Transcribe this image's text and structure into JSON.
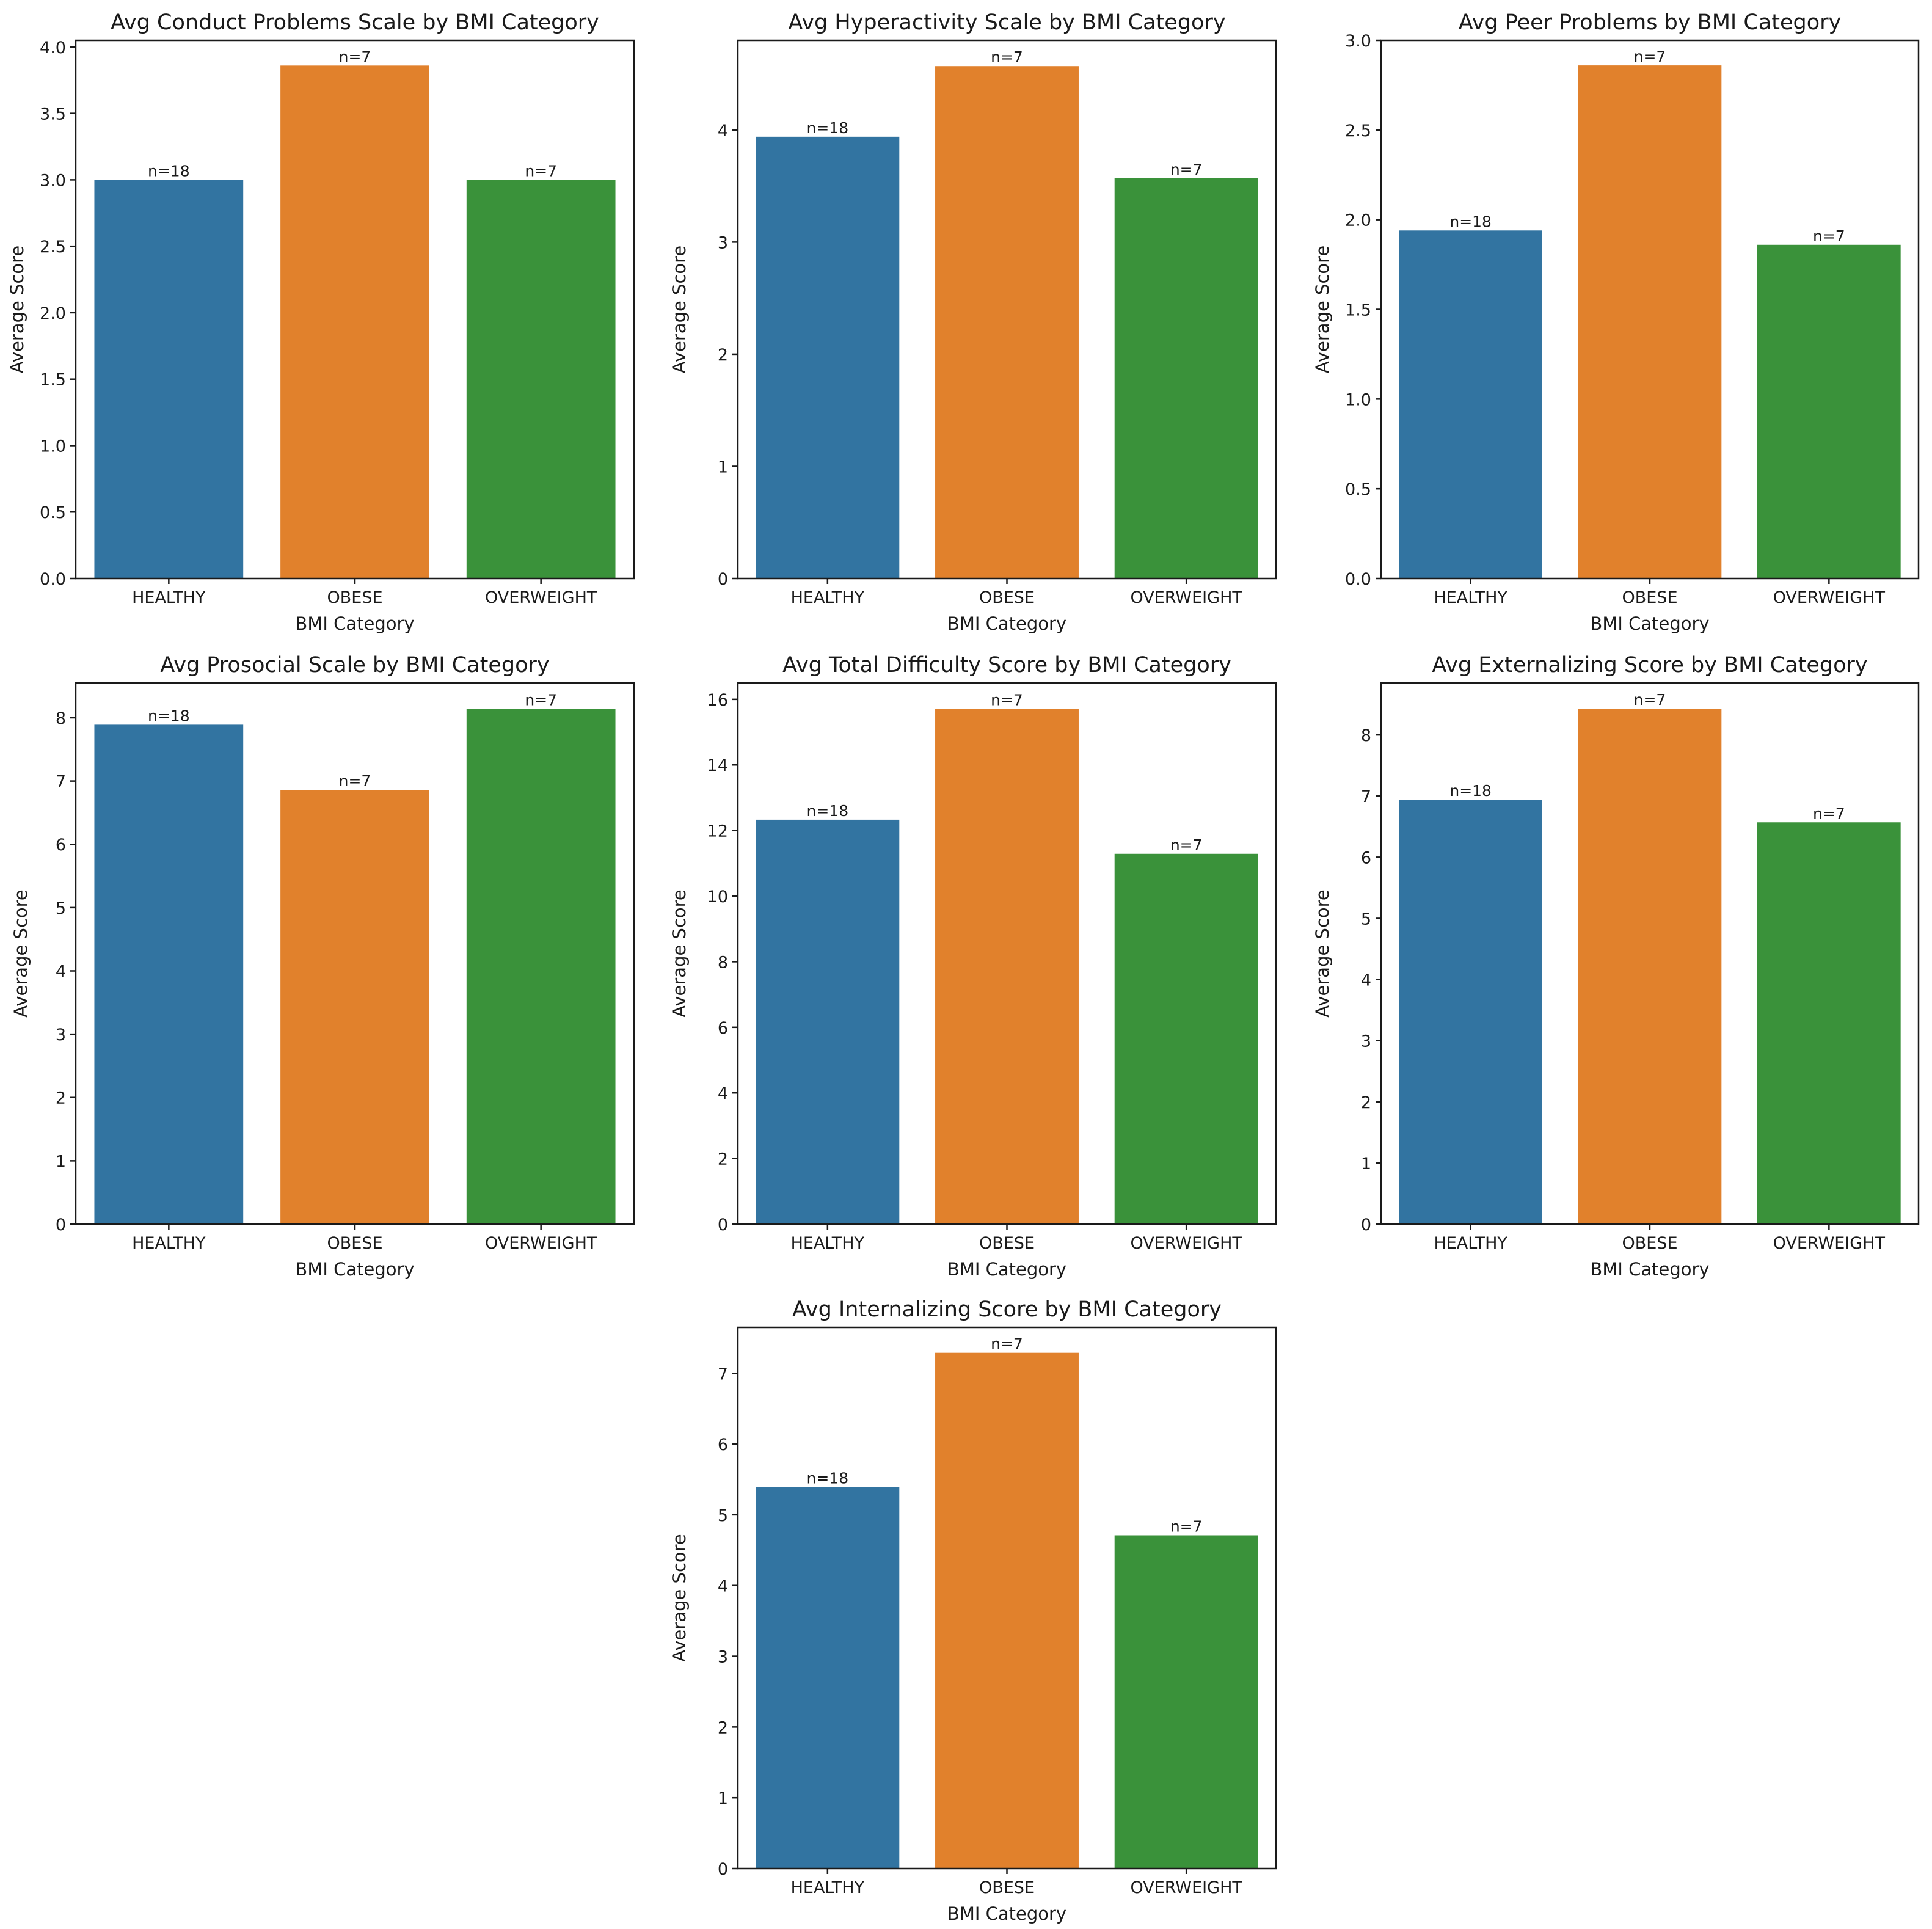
{
  "chart_data": [
    {
      "type": "bar",
      "title": "Avg Conduct Problems Scale by BMI Category",
      "xlabel": "BMI Category",
      "ylabel": "Average Score",
      "categories": [
        "HEALTHY",
        "OBESE",
        "OVERWEIGHT"
      ],
      "values": [
        3.0,
        3.86,
        3.0
      ],
      "data_labels": [
        "n=18",
        "n=7",
        "n=7"
      ],
      "colors": [
        "#3274a1",
        "#e1812c",
        "#3a923a"
      ],
      "ylim": [
        0,
        4.05
      ],
      "yticks": [
        0.0,
        0.5,
        1.0,
        1.5,
        2.0,
        2.5,
        3.0,
        3.5,
        4.0
      ],
      "ytick_labels": [
        "0.0",
        "0.5",
        "1.0",
        "1.5",
        "2.0",
        "2.5",
        "3.0",
        "3.5",
        "4.0"
      ],
      "grid": false
    },
    {
      "type": "bar",
      "title": "Avg Hyperactivity Scale by BMI Category",
      "xlabel": "BMI Category",
      "ylabel": "Average Score",
      "categories": [
        "HEALTHY",
        "OBESE",
        "OVERWEIGHT"
      ],
      "values": [
        3.94,
        4.57,
        3.57
      ],
      "data_labels": [
        "n=18",
        "n=7",
        "n=7"
      ],
      "colors": [
        "#3274a1",
        "#e1812c",
        "#3a923a"
      ],
      "ylim": [
        0,
        4.8
      ],
      "yticks": [
        0,
        1,
        2,
        3,
        4
      ],
      "ytick_labels": [
        "0",
        "1",
        "2",
        "3",
        "4"
      ],
      "grid": false
    },
    {
      "type": "bar",
      "title": "Avg Peer Problems by BMI Category",
      "xlabel": "BMI Category",
      "ylabel": "Average Score",
      "categories": [
        "HEALTHY",
        "OBESE",
        "OVERWEIGHT"
      ],
      "values": [
        1.94,
        2.86,
        1.86
      ],
      "data_labels": [
        "n=18",
        "n=7",
        "n=7"
      ],
      "colors": [
        "#3274a1",
        "#e1812c",
        "#3a923a"
      ],
      "ylim": [
        0,
        3.0
      ],
      "yticks": [
        0.0,
        0.5,
        1.0,
        1.5,
        2.0,
        2.5,
        3.0
      ],
      "ytick_labels": [
        "0.0",
        "0.5",
        "1.0",
        "1.5",
        "2.0",
        "2.5",
        "3.0"
      ],
      "grid": false
    },
    {
      "type": "bar",
      "title": "Avg Prosocial Scale by BMI Category",
      "xlabel": "BMI Category",
      "ylabel": "Average Score",
      "categories": [
        "HEALTHY",
        "OBESE",
        "OVERWEIGHT"
      ],
      "values": [
        7.89,
        6.86,
        8.14
      ],
      "data_labels": [
        "n=18",
        "n=7",
        "n=7"
      ],
      "colors": [
        "#3274a1",
        "#e1812c",
        "#3a923a"
      ],
      "ylim": [
        0,
        8.55
      ],
      "yticks": [
        0,
        1,
        2,
        3,
        4,
        5,
        6,
        7,
        8
      ],
      "ytick_labels": [
        "0",
        "1",
        "2",
        "3",
        "4",
        "5",
        "6",
        "7",
        "8"
      ],
      "grid": false
    },
    {
      "type": "bar",
      "title": "Avg Total Difficulty Score by BMI Category",
      "xlabel": "BMI Category",
      "ylabel": "Average Score",
      "categories": [
        "HEALTHY",
        "OBESE",
        "OVERWEIGHT"
      ],
      "values": [
        12.33,
        15.71,
        11.29
      ],
      "data_labels": [
        "n=18",
        "n=7",
        "n=7"
      ],
      "colors": [
        "#3274a1",
        "#e1812c",
        "#3a923a"
      ],
      "ylim": [
        0,
        16.5
      ],
      "yticks": [
        0,
        2,
        4,
        6,
        8,
        10,
        12,
        14,
        16
      ],
      "ytick_labels": [
        "0",
        "2",
        "4",
        "6",
        "8",
        "10",
        "12",
        "14",
        "16"
      ],
      "grid": false
    },
    {
      "type": "bar",
      "title": "Avg Externalizing Score by BMI Category",
      "xlabel": "BMI Category",
      "ylabel": "Average Score",
      "categories": [
        "HEALTHY",
        "OBESE",
        "OVERWEIGHT"
      ],
      "values": [
        6.94,
        8.43,
        6.57
      ],
      "data_labels": [
        "n=18",
        "n=7",
        "n=7"
      ],
      "colors": [
        "#3274a1",
        "#e1812c",
        "#3a923a"
      ],
      "ylim": [
        0,
        8.85
      ],
      "yticks": [
        0,
        1,
        2,
        3,
        4,
        5,
        6,
        7,
        8
      ],
      "ytick_labels": [
        "0",
        "1",
        "2",
        "3",
        "4",
        "5",
        "6",
        "7",
        "8"
      ],
      "grid": false
    },
    {
      "type": "bar",
      "title": "Avg Internalizing Score by BMI Category",
      "xlabel": "BMI Category",
      "ylabel": "Average Score",
      "categories": [
        "HEALTHY",
        "OBESE",
        "OVERWEIGHT"
      ],
      "values": [
        5.39,
        7.29,
        4.71
      ],
      "data_labels": [
        "n=18",
        "n=7",
        "n=7"
      ],
      "colors": [
        "#3274a1",
        "#e1812c",
        "#3a923a"
      ],
      "ylim": [
        0,
        7.65
      ],
      "yticks": [
        0,
        1,
        2,
        3,
        4,
        5,
        6,
        7
      ],
      "ytick_labels": [
        "0",
        "1",
        "2",
        "3",
        "4",
        "5",
        "6",
        "7"
      ],
      "grid": false
    }
  ]
}
